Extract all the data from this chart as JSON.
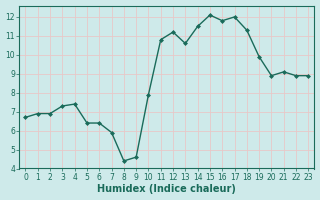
{
  "x": [
    0,
    1,
    2,
    3,
    4,
    5,
    6,
    7,
    8,
    9,
    10,
    11,
    12,
    13,
    14,
    15,
    16,
    17,
    18,
    19,
    20,
    21,
    22,
    23
  ],
  "y": [
    6.7,
    6.9,
    6.9,
    7.3,
    7.4,
    6.4,
    6.4,
    5.9,
    4.4,
    4.6,
    7.9,
    10.8,
    11.2,
    10.6,
    11.5,
    12.1,
    11.8,
    12.0,
    11.3,
    9.9,
    8.9,
    9.1,
    8.9,
    8.9
  ],
  "line_color": "#1a6b5a",
  "marker": "D",
  "marker_size": 2,
  "bg_color": "#ceeaea",
  "grid_color": "#e8c8c8",
  "xlabel": "Humidex (Indice chaleur)",
  "xlim": [
    -0.5,
    23.5
  ],
  "ylim": [
    4,
    12.6
  ],
  "yticks": [
    4,
    5,
    6,
    7,
    8,
    9,
    10,
    11,
    12
  ],
  "xticks": [
    0,
    1,
    2,
    3,
    4,
    5,
    6,
    7,
    8,
    9,
    10,
    11,
    12,
    13,
    14,
    15,
    16,
    17,
    18,
    19,
    20,
    21,
    22,
    23
  ],
  "tick_fontsize": 5.5,
  "label_fontsize": 7,
  "linewidth": 1.0
}
